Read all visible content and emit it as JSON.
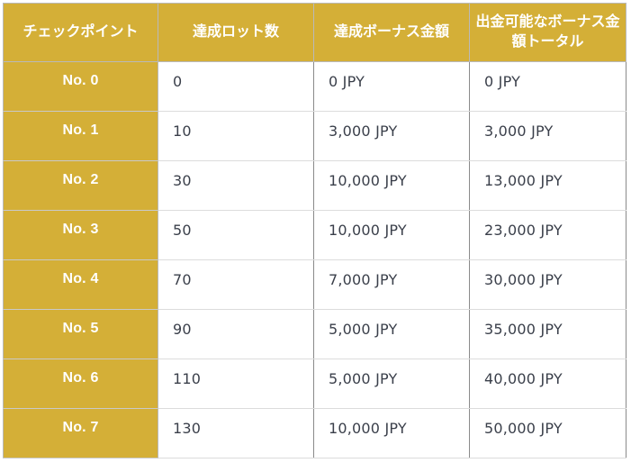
{
  "table": {
    "headers": [
      "チェックポイント",
      "達成ロット数",
      "達成ボーナス金額",
      "出金可能なボーナス金額トータル"
    ],
    "rows": [
      {
        "checkpoint": "No. 0",
        "lots": "0",
        "bonus": "0 JPY",
        "total": "0 JPY"
      },
      {
        "checkpoint": "No. 1",
        "lots": "10",
        "bonus": "3,000 JPY",
        "total": "3,000 JPY"
      },
      {
        "checkpoint": "No. 2",
        "lots": "30",
        "bonus": "10,000 JPY",
        "total": "13,000 JPY"
      },
      {
        "checkpoint": "No. 3",
        "lots": "50",
        "bonus": "10,000 JPY",
        "total": "23,000 JPY"
      },
      {
        "checkpoint": "No. 4",
        "lots": "70",
        "bonus": "7,000 JPY",
        "total": "30,000 JPY"
      },
      {
        "checkpoint": "No. 5",
        "lots": "90",
        "bonus": "5,000 JPY",
        "total": "35,000 JPY"
      },
      {
        "checkpoint": "No. 6",
        "lots": "110",
        "bonus": "5,000 JPY",
        "total": "40,000 JPY"
      },
      {
        "checkpoint": "No. 7",
        "lots": "130",
        "bonus": "10,000 JPY",
        "total": "50,000 JPY"
      }
    ]
  },
  "colors": {
    "header_bg": "#d4af37",
    "header_text": "#ffffff",
    "cell_text": "#3a3f4a"
  }
}
